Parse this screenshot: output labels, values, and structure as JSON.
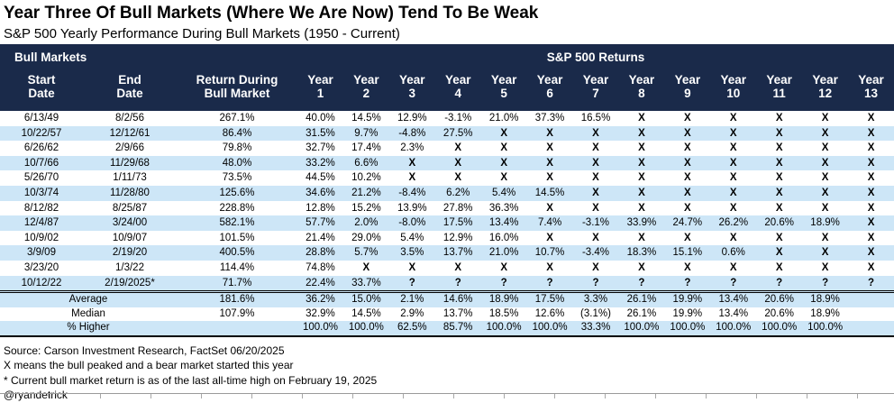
{
  "title": "Year Three Of Bull Markets (Where We Are Now) Tend To Be Weak",
  "subtitle": "S&P 500 Yearly Performance During Bull Markets (1950 - Current)",
  "colors": {
    "header_bg": "#1A2A4A",
    "header_text": "#FFFFFF",
    "stripe_blue": "#CDE6F7",
    "body_text": "#000000"
  },
  "chart_data": {
    "type": "table",
    "group_headers": {
      "left": "Bull Markets",
      "right": "S&P 500 Returns"
    },
    "columns": [
      {
        "l1": "Start",
        "l2": "Date"
      },
      {
        "l1": "End",
        "l2": "Date"
      },
      {
        "l1": "Return During",
        "l2": "Bull Market"
      },
      {
        "l1": "Year",
        "l2": "1"
      },
      {
        "l1": "Year",
        "l2": "2"
      },
      {
        "l1": "Year",
        "l2": "3"
      },
      {
        "l1": "Year",
        "l2": "4"
      },
      {
        "l1": "Year",
        "l2": "5"
      },
      {
        "l1": "Year",
        "l2": "6"
      },
      {
        "l1": "Year",
        "l2": "7"
      },
      {
        "l1": "Year",
        "l2": "8"
      },
      {
        "l1": "Year",
        "l2": "9"
      },
      {
        "l1": "Year",
        "l2": "10"
      },
      {
        "l1": "Year",
        "l2": "11"
      },
      {
        "l1": "Year",
        "l2": "12"
      },
      {
        "l1": "Year",
        "l2": "13"
      }
    ],
    "rows": [
      {
        "start": "6/13/49",
        "end": "8/2/56",
        "return": "267.1%",
        "years": [
          "40.0%",
          "14.5%",
          "12.9%",
          "-3.1%",
          "21.0%",
          "37.3%",
          "16.5%",
          "X",
          "X",
          "X",
          "X",
          "X",
          "X"
        ]
      },
      {
        "start": "10/22/57",
        "end": "12/12/61",
        "return": "86.4%",
        "years": [
          "31.5%",
          "9.7%",
          "-4.8%",
          "27.5%",
          "X",
          "X",
          "X",
          "X",
          "X",
          "X",
          "X",
          "X",
          "X"
        ]
      },
      {
        "start": "6/26/62",
        "end": "2/9/66",
        "return": "79.8%",
        "years": [
          "32.7%",
          "17.4%",
          "2.3%",
          "X",
          "X",
          "X",
          "X",
          "X",
          "X",
          "X",
          "X",
          "X",
          "X"
        ]
      },
      {
        "start": "10/7/66",
        "end": "11/29/68",
        "return": "48.0%",
        "years": [
          "33.2%",
          "6.6%",
          "X",
          "X",
          "X",
          "X",
          "X",
          "X",
          "X",
          "X",
          "X",
          "X",
          "X"
        ]
      },
      {
        "start": "5/26/70",
        "end": "1/11/73",
        "return": "73.5%",
        "years": [
          "44.5%",
          "10.2%",
          "X",
          "X",
          "X",
          "X",
          "X",
          "X",
          "X",
          "X",
          "X",
          "X",
          "X"
        ]
      },
      {
        "start": "10/3/74",
        "end": "11/28/80",
        "return": "125.6%",
        "years": [
          "34.6%",
          "21.2%",
          "-8.4%",
          "6.2%",
          "5.4%",
          "14.5%",
          "X",
          "X",
          "X",
          "X",
          "X",
          "X",
          "X"
        ]
      },
      {
        "start": "8/12/82",
        "end": "8/25/87",
        "return": "228.8%",
        "years": [
          "12.8%",
          "15.2%",
          "13.9%",
          "27.8%",
          "36.3%",
          "X",
          "X",
          "X",
          "X",
          "X",
          "X",
          "X",
          "X"
        ]
      },
      {
        "start": "12/4/87",
        "end": "3/24/00",
        "return": "582.1%",
        "years": [
          "57.7%",
          "2.0%",
          "-8.0%",
          "17.5%",
          "13.4%",
          "7.4%",
          "-3.1%",
          "33.9%",
          "24.7%",
          "26.2%",
          "20.6%",
          "18.9%",
          "X"
        ]
      },
      {
        "start": "10/9/02",
        "end": "10/9/07",
        "return": "101.5%",
        "years": [
          "21.4%",
          "29.0%",
          "5.4%",
          "12.9%",
          "16.0%",
          "X",
          "X",
          "X",
          "X",
          "X",
          "X",
          "X",
          "X"
        ]
      },
      {
        "start": "3/9/09",
        "end": "2/19/20",
        "return": "400.5%",
        "years": [
          "28.8%",
          "5.7%",
          "3.5%",
          "13.7%",
          "21.0%",
          "10.7%",
          "-3.4%",
          "18.3%",
          "15.1%",
          "0.6%",
          "X",
          "X",
          "X"
        ]
      },
      {
        "start": "3/23/20",
        "end": "1/3/22",
        "return": "114.4%",
        "years": [
          "74.8%",
          "X",
          "X",
          "X",
          "X",
          "X",
          "X",
          "X",
          "X",
          "X",
          "X",
          "X",
          "X"
        ]
      },
      {
        "start": "10/12/22",
        "end": "2/19/2025*",
        "return": "71.7%",
        "years": [
          "22.4%",
          "33.7%",
          "?",
          "?",
          "?",
          "?",
          "?",
          "?",
          "?",
          "?",
          "?",
          "?",
          "?"
        ]
      }
    ],
    "summary_rows": [
      {
        "label": "Average",
        "return": "181.6%",
        "years": [
          "36.2%",
          "15.0%",
          "2.1%",
          "14.6%",
          "18.9%",
          "17.5%",
          "3.3%",
          "26.1%",
          "19.9%",
          "13.4%",
          "20.6%",
          "18.9%",
          ""
        ]
      },
      {
        "label": "Median",
        "return": "107.9%",
        "years": [
          "32.9%",
          "14.5%",
          "2.9%",
          "13.7%",
          "18.5%",
          "12.6%",
          "(3.1%)",
          "26.1%",
          "19.9%",
          "13.4%",
          "20.6%",
          "18.9%",
          ""
        ]
      },
      {
        "label": "% Higher",
        "return": "",
        "years": [
          "100.0%",
          "100.0%",
          "62.5%",
          "85.7%",
          "100.0%",
          "100.0%",
          "33.3%",
          "100.0%",
          "100.0%",
          "100.0%",
          "100.0%",
          "100.0%",
          ""
        ]
      }
    ]
  },
  "footer": {
    "lines": [
      "Source: Carson Investment Research, FactSet 06/20/2025",
      "X means the bull peaked and a bear market started this year",
      "* Current bull market return is as of the last all-time high on February 19, 2025",
      "@ryandetrick"
    ]
  }
}
